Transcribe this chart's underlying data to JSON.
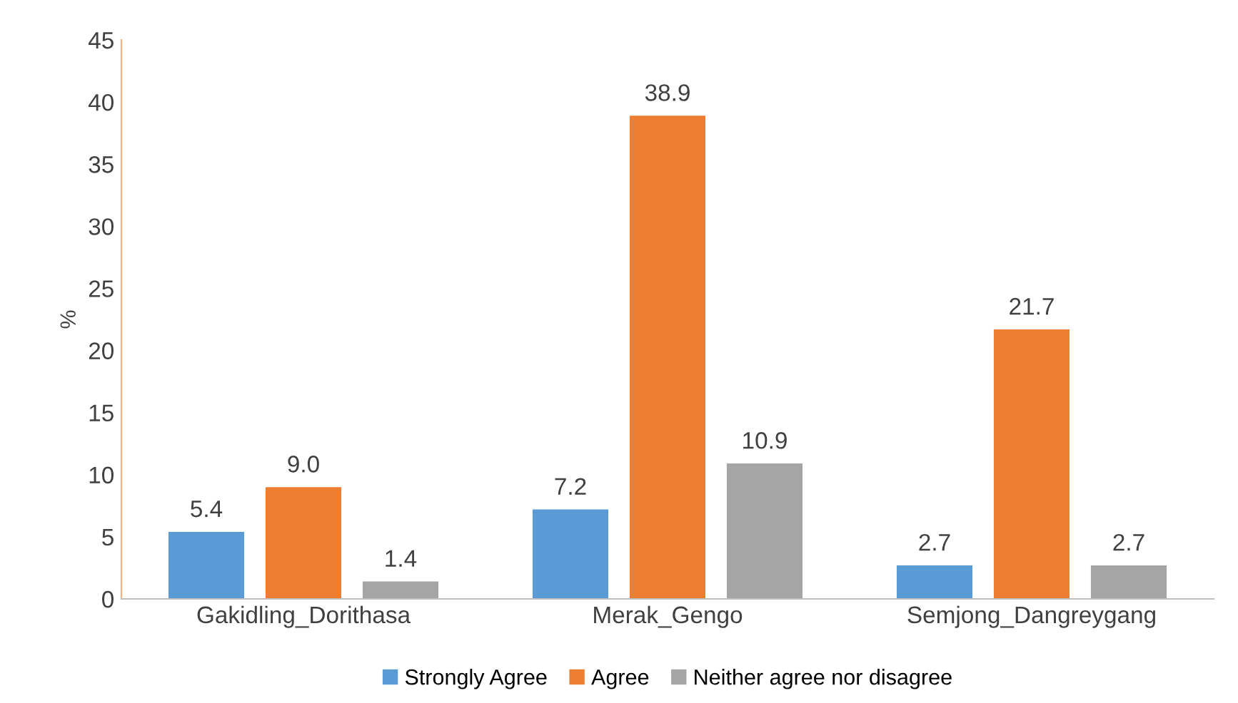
{
  "chart_data": {
    "type": "bar",
    "ylabel": "%",
    "categories": [
      "Gakidling_Dorithasa",
      "Merak_Gengo",
      "Semjong_Dangreygang"
    ],
    "series": [
      {
        "name": "Strongly Agree",
        "color": "#5b9bd5",
        "values": [
          5.4,
          7.2,
          2.7
        ],
        "value_labels": [
          "5.4",
          "7.2",
          "2.7"
        ]
      },
      {
        "name": "Agree",
        "color": "#ed7d31",
        "values": [
          9.0,
          38.9,
          21.7
        ],
        "value_labels": [
          "9.0",
          "38.9",
          "21.7"
        ]
      },
      {
        "name": "Neither agree nor disagree",
        "color": "#a5a5a5",
        "values": [
          1.4,
          10.9,
          2.7
        ],
        "value_labels": [
          "1.4",
          "10.9",
          "2.7"
        ]
      }
    ],
    "ylim": [
      0,
      45
    ],
    "yticks": [
      0,
      5,
      10,
      15,
      20,
      25,
      30,
      35,
      40,
      45
    ],
    "grid": false,
    "legend": "bottom"
  }
}
